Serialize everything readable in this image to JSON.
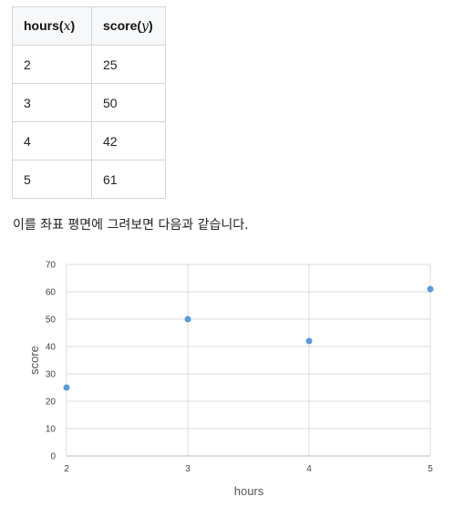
{
  "table": {
    "header_x_name": "hours",
    "header_x_var": "x",
    "header_y_name": "score",
    "header_y_var": "y",
    "rows": [
      {
        "hours": "2",
        "score": "25"
      },
      {
        "hours": "3",
        "score": "50"
      },
      {
        "hours": "4",
        "score": "42"
      },
      {
        "hours": "5",
        "score": "61"
      }
    ]
  },
  "caption": "이를 좌표 평면에 그려보면 다음과 같습니다.",
  "chart_data": {
    "type": "scatter",
    "x": [
      2,
      3,
      4,
      5
    ],
    "y": [
      25,
      50,
      42,
      61
    ],
    "xlabel": "hours",
    "ylabel": "score",
    "xlim": [
      2,
      5
    ],
    "ylim": [
      0,
      70
    ],
    "xticks": [
      2,
      3,
      4,
      5
    ],
    "yticks": [
      0,
      10,
      20,
      30,
      40,
      50,
      60,
      70
    ],
    "grid": true,
    "point_color": "#5b9bd5",
    "grid_color": "#dcdcdc"
  }
}
